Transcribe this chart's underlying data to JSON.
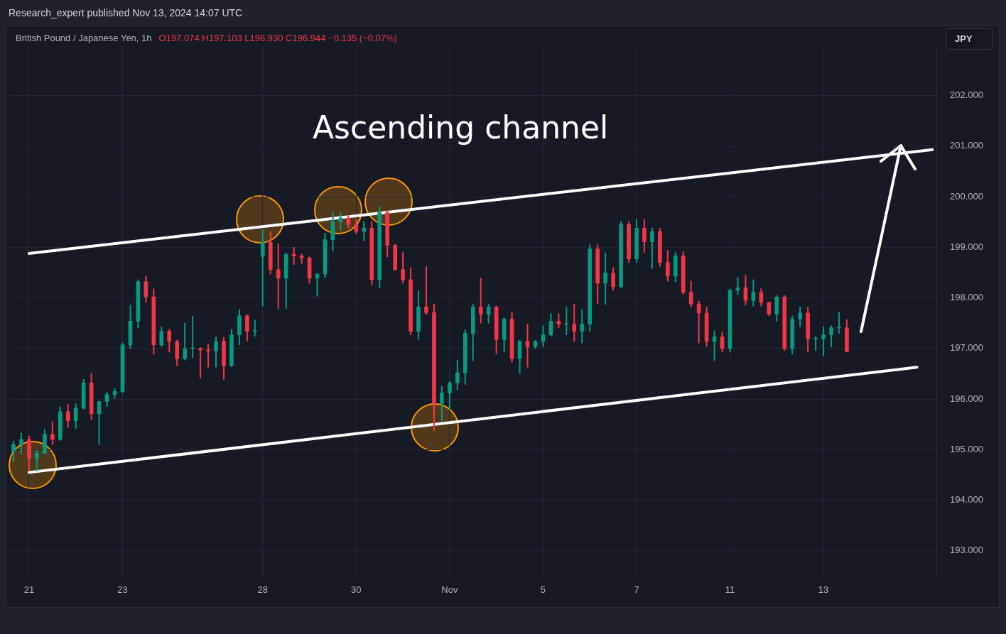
{
  "chart_data": {
    "type": "candlestick",
    "title": "British Pound / Japanese Yen, 1h",
    "subtitle": "O197.074 H197.103 L196.930 C196.944 −0.135 (−0.07%)",
    "ylabel": "JPY",
    "annotations": [
      "Research_expert published Nov 13, 2024 14:07 UTC",
      "Ascending channel"
    ],
    "categories": [
      null,
      null,
      "21",
      null,
      null,
      null,
      null,
      null,
      null,
      null,
      null,
      null,
      null,
      null,
      "23",
      null,
      null,
      null,
      null,
      null,
      null,
      null,
      null,
      null,
      null,
      null,
      null,
      null,
      null,
      null,
      null,
      null,
      "28",
      null,
      null,
      null,
      null,
      null,
      null,
      null,
      null,
      null,
      null,
      null,
      "30",
      null,
      null,
      null,
      null,
      null,
      null,
      null,
      null,
      null,
      null,
      null,
      "Nov",
      null,
      null,
      null,
      null,
      null,
      null,
      null,
      null,
      null,
      null,
      null,
      "5",
      null,
      null,
      null,
      null,
      null,
      null,
      null,
      null,
      null,
      null,
      null,
      "7",
      null,
      null,
      null,
      null,
      null,
      null,
      null,
      null,
      null,
      null,
      null,
      "11",
      null,
      null,
      null,
      null,
      null,
      null,
      null,
      null,
      null,
      null,
      null,
      "13",
      null,
      null,
      null,
      null,
      null,
      null,
      null,
      null,
      null,
      null,
      null,
      null,
      null,
      null
    ],
    "ohlc": [
      [
        194.96,
        195.17,
        194.76,
        195.1
      ],
      [
        195.1,
        195.33,
        194.92,
        195.2
      ],
      [
        195.2,
        195.27,
        194.58,
        194.83
      ],
      [
        194.83,
        194.99,
        194.58,
        194.93
      ],
      [
        194.93,
        195.4,
        194.92,
        195.3
      ],
      [
        195.3,
        195.55,
        195.1,
        195.2
      ],
      [
        195.2,
        195.85,
        195.18,
        195.75
      ],
      [
        195.75,
        195.89,
        195.44,
        195.57
      ],
      [
        195.57,
        195.91,
        195.42,
        195.82
      ],
      [
        195.82,
        196.39,
        195.8,
        196.32
      ],
      [
        196.32,
        196.51,
        195.6,
        195.71
      ],
      [
        195.71,
        195.96,
        195.1,
        195.95
      ],
      [
        195.95,
        196.14,
        195.85,
        196.09
      ],
      [
        196.09,
        196.21,
        196.01,
        196.15
      ],
      [
        196.15,
        197.11,
        196.12,
        197.07
      ],
      [
        197.07,
        197.86,
        197.0,
        197.54
      ],
      [
        197.54,
        198.36,
        197.41,
        198.32
      ],
      [
        198.32,
        198.43,
        197.91,
        198.02
      ],
      [
        198.02,
        198.18,
        196.89,
        197.07
      ],
      [
        197.07,
        197.43,
        197.04,
        197.34
      ],
      [
        197.34,
        197.38,
        196.93,
        197.14
      ],
      [
        197.14,
        197.16,
        196.66,
        196.8
      ],
      [
        196.8,
        197.5,
        196.77,
        197.0
      ],
      [
        197.0,
        197.64,
        196.82,
        197.0
      ],
      [
        197.0,
        197.02,
        196.42,
        196.97
      ],
      [
        196.97,
        197.08,
        196.63,
        196.95
      ],
      [
        196.95,
        197.23,
        196.63,
        197.14
      ],
      [
        197.14,
        197.22,
        196.39,
        196.66
      ],
      [
        196.66,
        197.38,
        196.64,
        197.27
      ],
      [
        197.27,
        197.77,
        197.07,
        197.65
      ],
      [
        197.65,
        197.67,
        197.15,
        197.34
      ],
      [
        197.34,
        197.56,
        197.24,
        197.34
      ],
      [
        198.82,
        199.35,
        197.84,
        199.1
      ],
      [
        199.1,
        199.31,
        198.47,
        198.56
      ],
      [
        198.56,
        199.07,
        197.79,
        198.39
      ],
      [
        198.39,
        198.89,
        197.79,
        198.86
      ],
      [
        198.86,
        199.0,
        198.66,
        198.83
      ],
      [
        198.83,
        198.87,
        198.68,
        198.79
      ],
      [
        198.79,
        198.81,
        198.29,
        198.39
      ],
      [
        198.39,
        198.48,
        198.03,
        198.47
      ],
      [
        198.47,
        199.28,
        198.4,
        199.15
      ],
      [
        199.15,
        199.7,
        198.93,
        199.51
      ],
      [
        199.51,
        199.7,
        199.34,
        199.58
      ],
      [
        199.58,
        199.64,
        199.38,
        199.45
      ],
      [
        199.45,
        199.57,
        199.27,
        199.31
      ],
      [
        199.31,
        199.51,
        199.13,
        199.38
      ],
      [
        199.38,
        199.51,
        198.26,
        198.36
      ],
      [
        198.36,
        199.8,
        198.2,
        199.69
      ],
      [
        199.69,
        199.72,
        198.81,
        199.04
      ],
      [
        199.04,
        199.06,
        198.54,
        198.56
      ],
      [
        198.56,
        198.9,
        198.29,
        198.36
      ],
      [
        198.36,
        198.6,
        197.27,
        197.34
      ],
      [
        197.34,
        198.14,
        197.18,
        197.82
      ],
      [
        197.82,
        198.62,
        197.67,
        197.71
      ],
      [
        197.71,
        197.88,
        195.37,
        195.91
      ],
      [
        195.91,
        196.25,
        195.57,
        196.12
      ],
      [
        196.12,
        196.35,
        195.78,
        196.32
      ],
      [
        196.32,
        196.77,
        196.18,
        196.52
      ],
      [
        196.52,
        197.37,
        196.29,
        197.3
      ],
      [
        197.3,
        197.88,
        196.76,
        197.82
      ],
      [
        197.82,
        198.39,
        197.5,
        197.68
      ],
      [
        197.68,
        197.88,
        197.5,
        197.82
      ],
      [
        197.82,
        197.84,
        196.89,
        197.18
      ],
      [
        197.18,
        197.61,
        196.93,
        197.58
      ],
      [
        197.58,
        197.72,
        196.73,
        196.8
      ],
      [
        196.8,
        197.16,
        196.5,
        197.14
      ],
      [
        197.14,
        197.48,
        196.63,
        197.03
      ],
      [
        197.03,
        197.16,
        197.0,
        197.14
      ],
      [
        197.14,
        197.45,
        197.03,
        197.27
      ],
      [
        197.27,
        197.69,
        197.25,
        197.54
      ],
      [
        197.54,
        197.69,
        197.41,
        197.48
      ],
      [
        197.48,
        197.82,
        197.27,
        197.48
      ],
      [
        197.48,
        197.87,
        197.14,
        197.34
      ],
      [
        197.34,
        197.77,
        197.11,
        197.48
      ],
      [
        197.48,
        199.05,
        197.34,
        198.97
      ],
      [
        198.97,
        199.05,
        197.88,
        198.29
      ],
      [
        198.29,
        198.89,
        197.87,
        198.49
      ],
      [
        198.49,
        198.6,
        198.15,
        198.22
      ],
      [
        198.22,
        199.51,
        198.2,
        199.45
      ],
      [
        199.45,
        199.51,
        198.7,
        198.77
      ],
      [
        198.77,
        199.55,
        198.7,
        199.38
      ],
      [
        199.38,
        199.55,
        198.9,
        199.11
      ],
      [
        199.11,
        199.38,
        198.58,
        199.31
      ],
      [
        199.31,
        199.38,
        198.62,
        198.7
      ],
      [
        198.7,
        198.94,
        198.33,
        198.43
      ],
      [
        198.43,
        198.9,
        198.32,
        198.83
      ],
      [
        198.83,
        198.92,
        198.07,
        198.11
      ],
      [
        198.11,
        198.33,
        197.82,
        197.88
      ],
      [
        197.88,
        197.94,
        197.11,
        197.7
      ],
      [
        197.7,
        197.82,
        197.04,
        197.14
      ],
      [
        197.14,
        197.35,
        196.76,
        197.23
      ],
      [
        197.23,
        197.33,
        196.93,
        197.0
      ],
      [
        197.0,
        198.18,
        196.93,
        198.15
      ],
      [
        198.15,
        198.41,
        198.06,
        198.2
      ],
      [
        198.2,
        198.45,
        197.86,
        197.95
      ],
      [
        197.95,
        198.36,
        197.84,
        198.11
      ],
      [
        198.11,
        198.18,
        197.84,
        197.91
      ],
      [
        197.91,
        197.92,
        197.65,
        197.68
      ],
      [
        197.68,
        198.05,
        197.54,
        198.02
      ],
      [
        198.02,
        198.05,
        196.96,
        197.0
      ],
      [
        197.0,
        197.64,
        196.89,
        197.58
      ],
      [
        197.58,
        197.82,
        197.43,
        197.7
      ],
      [
        197.7,
        197.82,
        196.93,
        197.19
      ],
      [
        197.19,
        197.24,
        196.96,
        197.19
      ],
      [
        197.19,
        197.43,
        196.86,
        197.27
      ],
      [
        197.27,
        197.45,
        197.03,
        197.41
      ],
      [
        197.41,
        197.71,
        197.3,
        197.41
      ],
      [
        197.41,
        197.57,
        196.93,
        196.94
      ],
      null,
      null,
      null,
      null,
      null,
      null,
      null,
      null,
      null,
      null,
      null
    ],
    "colors": [
      "#089981",
      "#089981",
      "#f23645",
      "#089981",
      "#089981",
      "#f23645",
      "#089981",
      "#f23645",
      "#089981",
      "#089981",
      "#f23645",
      "#089981",
      "#089981",
      "#089981",
      "#089981",
      "#089981",
      "#089981",
      "#f23645",
      "#f23645",
      "#089981",
      "#f23645",
      "#f23645",
      "#089981",
      "#089981",
      "#f23645",
      "#f23645",
      "#089981",
      "#f23645",
      "#089981",
      "#089981",
      "#f23645",
      "#089981",
      "#089981",
      "#f23645",
      "#f23645",
      "#089981",
      "#f23645",
      "#f23645",
      "#f23645",
      "#089981",
      "#089981",
      "#089981",
      "#089981",
      "#f23645",
      "#f23645",
      "#089981",
      "#f23645",
      "#089981",
      "#f23645",
      "#f23645",
      "#f23645",
      "#f23645",
      "#089981",
      "#f23645",
      "#f23645",
      "#089981",
      "#089981",
      "#089981",
      "#089981",
      "#089981",
      "#f23645",
      "#089981",
      "#f23645",
      "#089981",
      "#f23645",
      "#089981",
      "#f23645",
      "#089981",
      "#089981",
      "#089981",
      "#f23645",
      "#089981",
      "#f23645",
      "#089981",
      "#089981",
      "#f23645",
      "#089981",
      "#f23645",
      "#089981",
      "#f23645",
      "#089981",
      "#f23645",
      "#089981",
      "#f23645",
      "#f23645",
      "#089981",
      "#f23645",
      "#f23645",
      "#f23645",
      "#f23645",
      "#089981",
      "#f23645",
      "#089981",
      "#089981",
      "#f23645",
      "#089981",
      "#f23645",
      "#f23645",
      "#089981",
      "#f23645",
      "#089981",
      "#089981",
      "#f23645",
      "#089981",
      "#089981",
      "#089981",
      "#089981",
      "#f23645",
      null,
      null,
      null,
      null,
      null,
      null,
      null,
      null,
      null,
      null,
      null
    ],
    "series": [
      {
        "type": "line",
        "color": "#ffffff",
        "values": [
          null,
          null,
          198.88,
          null,
          null,
          null,
          null,
          null,
          null,
          null,
          null,
          null,
          null,
          null,
          null,
          null,
          null,
          null,
          null,
          null,
          null,
          null,
          null,
          null,
          null,
          null,
          null,
          null,
          null,
          null,
          null,
          null,
          null,
          null,
          null,
          null,
          null,
          null,
          null,
          null,
          null,
          null,
          null,
          null,
          null,
          null,
          null,
          null,
          null,
          null,
          null,
          null,
          null,
          null,
          null,
          null,
          null,
          null,
          null,
          null,
          null,
          null,
          null,
          null,
          null,
          null,
          null,
          null,
          null,
          null,
          null,
          null,
          null,
          null,
          null,
          null,
          null,
          null,
          null,
          null,
          null,
          null,
          null,
          null,
          null,
          null,
          null,
          null,
          null,
          null,
          null,
          null,
          null,
          null,
          null,
          null,
          null,
          null,
          null,
          null,
          null,
          null,
          null,
          null,
          null,
          null,
          null,
          null,
          null,
          null,
          null,
          null,
          null,
          null,
          null,
          null,
          null,
          null,
          200.93
        ]
      },
      {
        "type": "line",
        "color": "#ffffff",
        "values": [
          null,
          null,
          194.55,
          null,
          null,
          null,
          null,
          null,
          null,
          null,
          null,
          null,
          null,
          null,
          null,
          null,
          null,
          null,
          null,
          null,
          null,
          null,
          null,
          null,
          null,
          null,
          null,
          null,
          null,
          null,
          null,
          null,
          null,
          null,
          null,
          null,
          null,
          null,
          null,
          null,
          null,
          null,
          null,
          null,
          null,
          null,
          null,
          null,
          null,
          null,
          null,
          null,
          null,
          null,
          null,
          null,
          null,
          null,
          null,
          null,
          null,
          null,
          null,
          null,
          null,
          null,
          null,
          null,
          null,
          null,
          null,
          null,
          null,
          null,
          null,
          null,
          null,
          null,
          null,
          null,
          null,
          null,
          null,
          null,
          null,
          null,
          null,
          null,
          null,
          null,
          null,
          null,
          null,
          null,
          null,
          null,
          null,
          null,
          null,
          null,
          null,
          null,
          null,
          null,
          null,
          null,
          null,
          null,
          null,
          null,
          null,
          null,
          null,
          null,
          null,
          null,
          196.63,
          null,
          null
        ]
      }
    ],
    "ylim": [
      192.45,
      202.98
    ],
    "yticks": [
      {
        "value": 193,
        "label": "193.000"
      },
      {
        "value": 194,
        "label": "194.000"
      },
      {
        "value": 195,
        "label": "195.000"
      },
      {
        "value": 196,
        "label": "196.000"
      },
      {
        "value": 197,
        "label": "197.000"
      },
      {
        "value": 198,
        "label": "198.000"
      },
      {
        "value": 199,
        "label": "199.000"
      },
      {
        "value": 200,
        "label": "200.000"
      },
      {
        "value": 201,
        "label": "201.000"
      },
      {
        "value": 202,
        "label": "202.000"
      }
    ],
    "grid": true
  }
}
